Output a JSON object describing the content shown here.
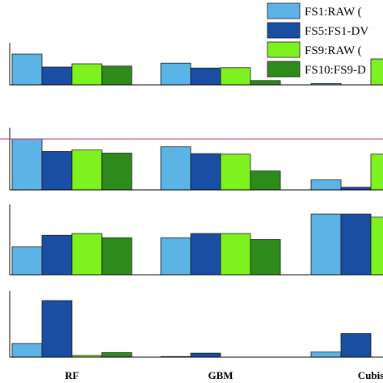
{
  "chart_data": {
    "type": "bar",
    "categories": [
      "RF",
      "GBM",
      "Cubis"
    ],
    "series": [
      {
        "name": "FS1:RAW (",
        "color": "#5bb4e5"
      },
      {
        "name": "FS5:FS1-DV",
        "color": "#1a4ea2"
      },
      {
        "name": "FS9:RAW (",
        "color": "#7ef21f"
      },
      {
        "name": "FS10:FS9-D",
        "color": "#2f8a1c"
      }
    ],
    "panels": [
      {
        "ylim": [
          0,
          1
        ],
        "values": [
          [
            0.95,
            0.55,
            0.65,
            0.58
          ],
          [
            0.67,
            0.52,
            0.53,
            0.13
          ],
          [
            0.04,
            0,
            0.8,
            0
          ]
        ]
      },
      {
        "ylim": [
          0,
          1
        ],
        "values": [
          [
            0.97,
            0.73,
            0.76,
            0.7
          ],
          [
            0.82,
            0.69,
            0.68,
            0.36
          ],
          [
            0.19,
            0.05,
            0.68,
            0
          ]
        ]
      },
      {
        "ylim": [
          0,
          1
        ],
        "values": [
          [
            0.46,
            0.65,
            0.68,
            0.61
          ],
          [
            0.61,
            0.68,
            0.68,
            0.58
          ],
          [
            1.0,
            1.0,
            0.95,
            0
          ]
        ]
      },
      {
        "ylim": [
          0,
          1
        ],
        "values": [
          [
            0.24,
            1.0,
            0.03,
            0.08
          ],
          [
            0.01,
            0.07,
            0,
            0
          ],
          [
            0.09,
            0.42,
            0,
            0
          ]
        ]
      }
    ],
    "reference_line": {
      "panel": 1,
      "color": "#c0306a"
    },
    "legend_position": "top-right",
    "grid": false
  }
}
